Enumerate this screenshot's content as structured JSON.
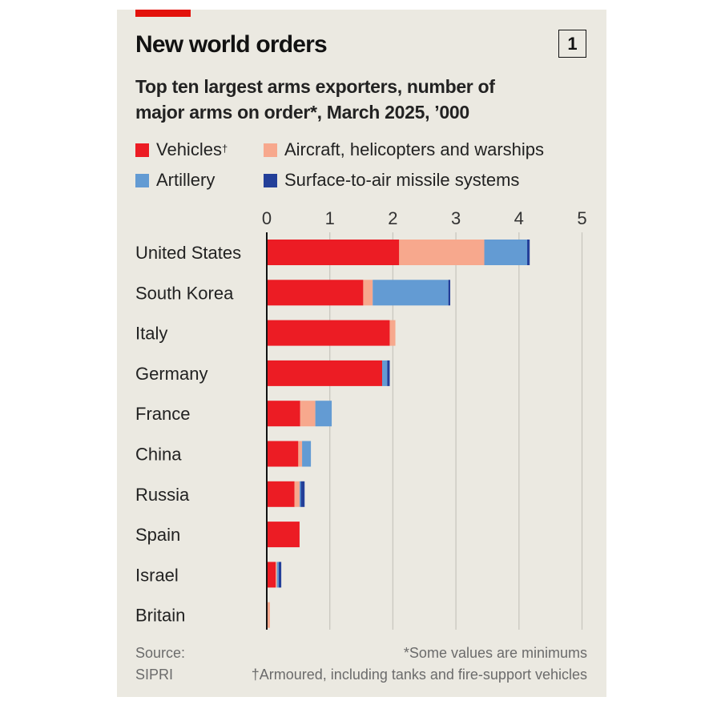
{
  "header": {
    "title": "New world orders",
    "chart_number": "1",
    "subtitle_line1": "Top ten largest arms exporters, number of",
    "subtitle_line2": "major arms on order*, March 2025, ’000"
  },
  "colors": {
    "accent_red": "#e3120b",
    "background": "#ebe9e1",
    "vehicles": "#ec1c24",
    "aircraft": "#f7a88d",
    "artillery": "#639bd3",
    "sam": "#233f99"
  },
  "footer": {
    "source_label": "Source:",
    "source_name": "SIPRI",
    "note1": "*Some values are minimums",
    "note2": "†Armoured, including tanks and fire-support vehicles"
  },
  "chart_data": {
    "type": "bar",
    "orientation": "horizontal",
    "stacked": true,
    "title": "New world orders",
    "subtitle": "Top ten largest arms exporters, number of major arms on order*, March 2025, '000",
    "xlabel": "",
    "ylabel": "",
    "xlim": [
      0,
      5
    ],
    "x_ticks": [
      0,
      1,
      2,
      3,
      4,
      5
    ],
    "grid": true,
    "legend_position": "top",
    "categories": [
      "United States",
      "South Korea",
      "Italy",
      "Germany",
      "France",
      "China",
      "Russia",
      "Spain",
      "Israel",
      "Britain"
    ],
    "series": [
      {
        "name": "Vehicles",
        "legend_mark": "†",
        "color": "#ec1c24",
        "values": [
          2.1,
          1.53,
          1.95,
          1.83,
          0.53,
          0.5,
          0.44,
          0.52,
          0.14,
          0.0
        ]
      },
      {
        "name": "Aircraft, helicopters and warships",
        "legend_mark": "",
        "color": "#f7a88d",
        "values": [
          1.35,
          0.15,
          0.09,
          0.0,
          0.24,
          0.06,
          0.08,
          0.0,
          0.02,
          0.05
        ]
      },
      {
        "name": "Artillery",
        "legend_mark": "",
        "color": "#639bd3",
        "values": [
          0.68,
          1.2,
          0.0,
          0.08,
          0.26,
          0.14,
          0.02,
          0.0,
          0.03,
          0.0
        ]
      },
      {
        "name": "Surface-to-air missile systems",
        "legend_mark": "",
        "color": "#233f99",
        "values": [
          0.04,
          0.03,
          0.0,
          0.04,
          0.0,
          0.0,
          0.06,
          0.0,
          0.04,
          0.0
        ]
      }
    ],
    "footnotes": [
      "*Some values are minimums",
      "†Armoured, including tanks and fire-support vehicles"
    ],
    "source": "SIPRI"
  }
}
